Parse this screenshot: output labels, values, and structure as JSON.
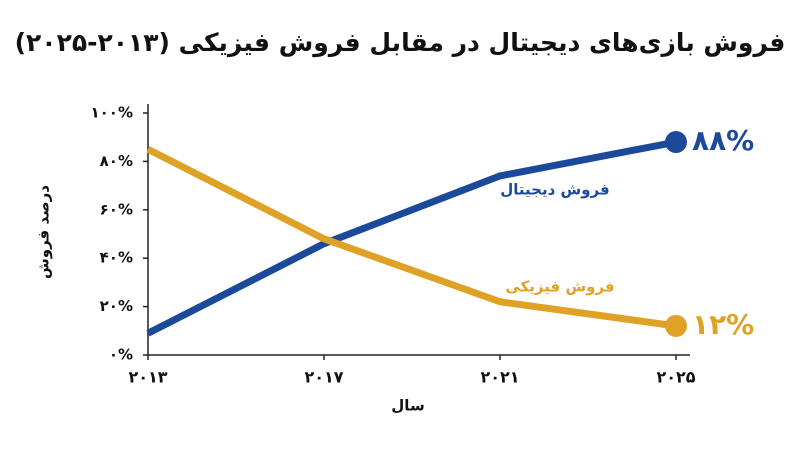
{
  "chart_data": {
    "type": "line",
    "title": "فروش بازی‌های دیجیتال در مقابل فروش فیزیکی (۲۰۱۳-۲۰۲۵)",
    "x_label": "سال",
    "y_label": "درصد فروش",
    "x": [
      2013,
      2017,
      2021,
      2025
    ],
    "xlim": [
      2013,
      2025
    ],
    "xticks": [
      {
        "value": 2013,
        "label": "۲۰۱۳"
      },
      {
        "value": 2017,
        "label": "۲۰۱۷"
      },
      {
        "value": 2021,
        "label": "۲۰۲۱"
      },
      {
        "value": 2025,
        "label": "۲۰۲۵"
      }
    ],
    "ylim": [
      0,
      100
    ],
    "yticks": [
      {
        "value": 0,
        "label": "۰%"
      },
      {
        "value": 20,
        "label": "۲۰%"
      },
      {
        "value": 40,
        "label": "۴۰%"
      },
      {
        "value": 60,
        "label": "۶۰%"
      },
      {
        "value": 80,
        "label": "۸۰%"
      },
      {
        "value": 100,
        "label": "۱۰۰%"
      }
    ],
    "grid": false,
    "series": [
      {
        "name": "فروش دیجیتال",
        "color": "#1b4a9b",
        "values": [
          9,
          46,
          74,
          88
        ],
        "value_labels": [
          null,
          null,
          null,
          "۸۸%"
        ]
      },
      {
        "name": "فروش فیزیکی",
        "color": "#e0a127",
        "values": [
          85,
          48,
          22,
          12
        ],
        "value_labels": [
          null,
          null,
          null,
          "۱۲%"
        ]
      }
    ]
  }
}
